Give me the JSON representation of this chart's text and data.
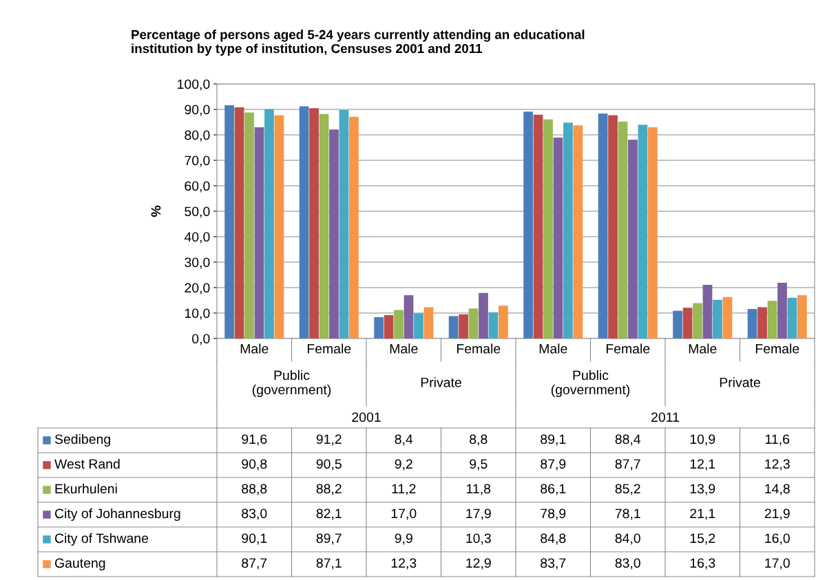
{
  "chart_data": {
    "type": "bar",
    "title": "Percentage of persons aged 5-24 years currently attending an educational\ninstitution by type of institution, Censuses 2001 and 2011",
    "ylabel": "%",
    "categories": [
      "Male",
      "Female",
      "Male",
      "Female",
      "Male",
      "Female",
      "Male",
      "Female"
    ],
    "annotations": [
      "Public\n(government)",
      "Private",
      "Public\n(government)",
      "Private",
      "2001",
      "2011"
    ],
    "series": [
      {
        "name": "Sedibeng",
        "color": "#4a7ebb",
        "values": [
          91.6,
          91.2,
          8.4,
          8.8,
          89.1,
          88.4,
          10.9,
          11.6
        ],
        "value_labels": [
          "91,6",
          "91,2",
          "8,4",
          "8,8",
          "89,1",
          "88,4",
          "10,9",
          "11,6"
        ]
      },
      {
        "name": "West Rand",
        "color": "#be4b48",
        "values": [
          90.8,
          90.5,
          9.2,
          9.5,
          87.9,
          87.7,
          12.1,
          12.3
        ],
        "value_labels": [
          "90,8",
          "90,5",
          "9,2",
          "9,5",
          "87,9",
          "87,7",
          "12,1",
          "12,3"
        ]
      },
      {
        "name": "Ekurhuleni",
        "color": "#98b954",
        "values": [
          88.8,
          88.2,
          11.2,
          11.8,
          86.1,
          85.2,
          13.9,
          14.8
        ],
        "value_labels": [
          "88,8",
          "88,2",
          "11,2",
          "11,8",
          "86,1",
          "85,2",
          "13,9",
          "14,8"
        ]
      },
      {
        "name": "City of Johannesburg",
        "color": "#7d60a0",
        "values": [
          83.0,
          82.1,
          17.0,
          17.9,
          78.9,
          78.1,
          21.1,
          21.9
        ],
        "value_labels": [
          "83,0",
          "82,1",
          "17,0",
          "17,9",
          "78,9",
          "78,1",
          "21,1",
          "21,9"
        ]
      },
      {
        "name": "City of Tshwane",
        "color": "#46aac5",
        "values": [
          90.1,
          89.7,
          9.9,
          10.3,
          84.8,
          84.0,
          15.2,
          16.0
        ],
        "value_labels": [
          "90,1",
          "89,7",
          "9,9",
          "10,3",
          "84,8",
          "84,0",
          "15,2",
          "16,0"
        ]
      },
      {
        "name": "Gauteng",
        "color": "#f79646",
        "values": [
          87.7,
          87.1,
          12.3,
          12.9,
          83.7,
          83.0,
          16.3,
          17.0
        ],
        "value_labels": [
          "87,7",
          "87,1",
          "12,3",
          "12,9",
          "83,7",
          "83,0",
          "16,3",
          "17,0"
        ]
      }
    ],
    "ylim": [
      0,
      100
    ],
    "yticks": [
      {
        "value": 0,
        "label": "0,0"
      },
      {
        "value": 10,
        "label": "10,0"
      },
      {
        "value": 20,
        "label": "20,0"
      },
      {
        "value": 30,
        "label": "30,0"
      },
      {
        "value": 40,
        "label": "40,0"
      },
      {
        "value": 50,
        "label": "50,0"
      },
      {
        "value": 60,
        "label": "60,0"
      },
      {
        "value": 70,
        "label": "70,0"
      },
      {
        "value": 80,
        "label": "80,0"
      },
      {
        "value": 90,
        "label": "90,0"
      },
      {
        "value": 100,
        "label": "100,0"
      }
    ],
    "grid": "y",
    "legend": "bottom"
  }
}
